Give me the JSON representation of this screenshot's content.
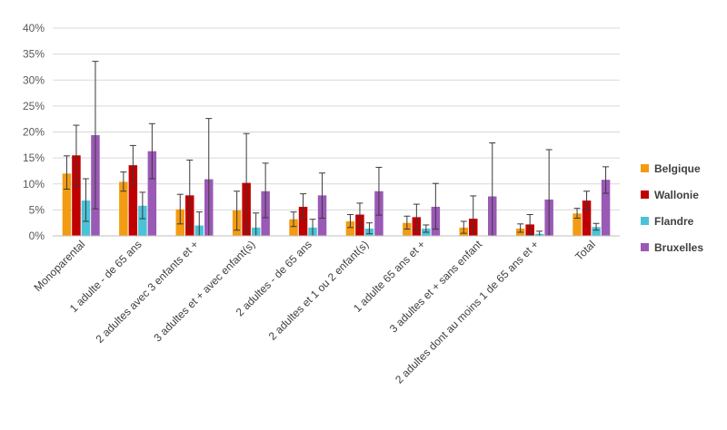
{
  "chart_data": {
    "type": "bar",
    "categories": [
      "Monoparental",
      "1 adulte - de 65 ans",
      "2 adultes avec 3 enfants et +",
      "3 adultes et + avec enfant(s)",
      "2 adultes - de 65 ans",
      "2 adultes et 1 ou 2 enfant(s)",
      "1 adulte 65 ans et +",
      "3 adultes et + sans enfant",
      "2 adultes dont au moins 1 de 65 ans et +",
      "Total"
    ],
    "series": [
      {
        "name": "Belgique",
        "color": "#F39C12",
        "values": [
          12.0,
          10.4,
          5.1,
          4.9,
          3.2,
          2.8,
          2.5,
          1.6,
          1.4,
          4.3
        ],
        "err_low": [
          9.0,
          8.6,
          2.3,
          1.1,
          1.8,
          1.6,
          1.3,
          0.5,
          0.7,
          3.4
        ],
        "err_high": [
          15.4,
          12.3,
          8.0,
          8.6,
          4.6,
          4.1,
          3.8,
          2.8,
          2.3,
          5.3
        ]
      },
      {
        "name": "Wallonie",
        "color": "#C00000",
        "values": [
          15.5,
          13.6,
          7.8,
          10.2,
          5.6,
          4.1,
          3.6,
          3.3,
          2.2,
          6.8
        ],
        "err_low": [
          9.6,
          9.8,
          1.6,
          0.7,
          3.2,
          1.8,
          1.1,
          0.0,
          0.3,
          5.1
        ],
        "err_high": [
          21.3,
          17.4,
          14.6,
          19.7,
          8.1,
          6.3,
          6.1,
          7.7,
          4.1,
          8.6
        ]
      },
      {
        "name": "Flandre",
        "color": "#4BC3D6",
        "values": [
          6.8,
          5.8,
          2.0,
          1.6,
          1.6,
          1.4,
          1.4,
          0.0,
          0.4,
          1.7
        ],
        "err_low": [
          2.8,
          3.3,
          0.0,
          0.0,
          0.0,
          0.4,
          0.7,
          0.0,
          0.0,
          1.1
        ],
        "err_high": [
          11.0,
          8.4,
          4.6,
          4.4,
          3.2,
          2.5,
          2.1,
          0.0,
          0.9,
          2.4
        ]
      },
      {
        "name": "Bruxelles",
        "color": "#9B59B6",
        "values": [
          19.4,
          16.3,
          10.9,
          8.6,
          7.8,
          8.6,
          5.6,
          7.6,
          7.0,
          10.8
        ],
        "err_low": [
          5.2,
          11.0,
          0.0,
          3.5,
          3.4,
          4.0,
          1.3,
          0.0,
          0.0,
          8.2
        ],
        "err_high": [
          33.6,
          21.6,
          22.6,
          14.0,
          12.1,
          13.2,
          10.1,
          17.9,
          16.6,
          13.3
        ]
      }
    ],
    "y_ticks": [
      "0%",
      "5%",
      "10%",
      "15%",
      "20%",
      "25%",
      "30%",
      "35%",
      "40%"
    ],
    "ylim": [
      0,
      40
    ],
    "grid": true,
    "legend_position": "right",
    "title": "",
    "xlabel": "",
    "ylabel": ""
  }
}
